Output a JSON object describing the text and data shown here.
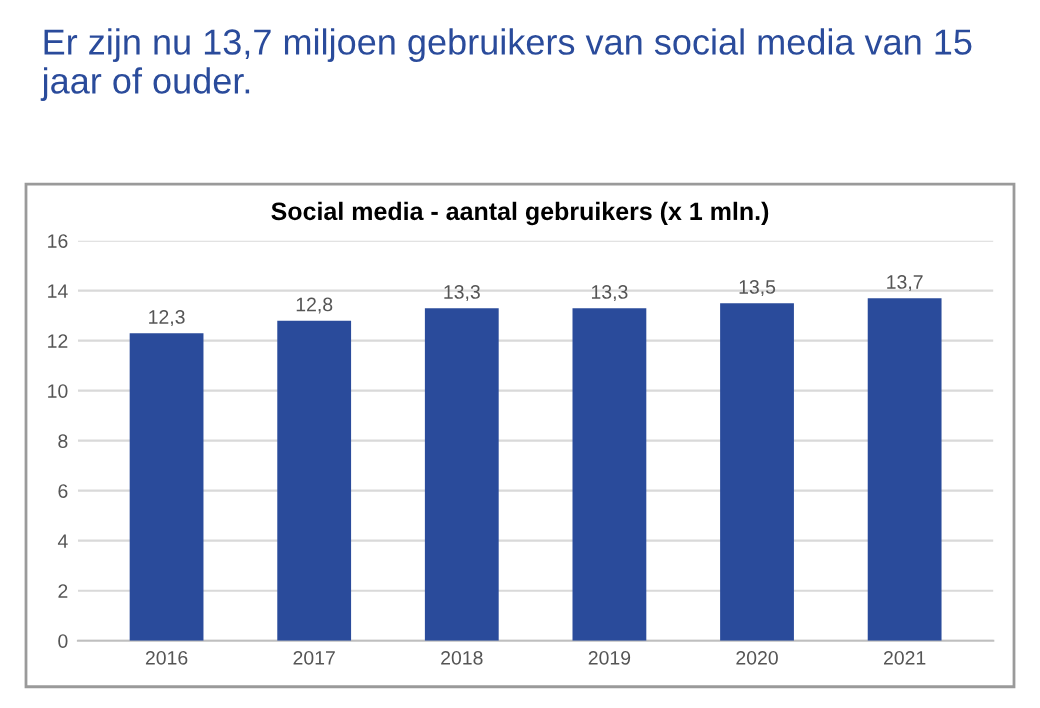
{
  "chart_data": {
    "type": "bar",
    "title": "Er zijn nu 13,7 miljoen gebruikers van social media van 15 jaar of ouder.",
    "subtitle": "Social media - aantal gebruikers (x 1 mln.)",
    "categories": [
      "2016",
      "2017",
      "2018",
      "2019",
      "2020",
      "2021"
    ],
    "values": [
      12.3,
      12.8,
      13.3,
      13.3,
      13.5,
      13.7
    ],
    "value_labels": [
      "12,3",
      "12,8",
      "13,3",
      "13,3",
      "13,5",
      "13,7"
    ],
    "color": "#2a4b9b",
    "ylim": [
      0,
      16
    ],
    "yticks": [
      0,
      2,
      4,
      6,
      8,
      10,
      12,
      14,
      16
    ],
    "grid": "y"
  }
}
